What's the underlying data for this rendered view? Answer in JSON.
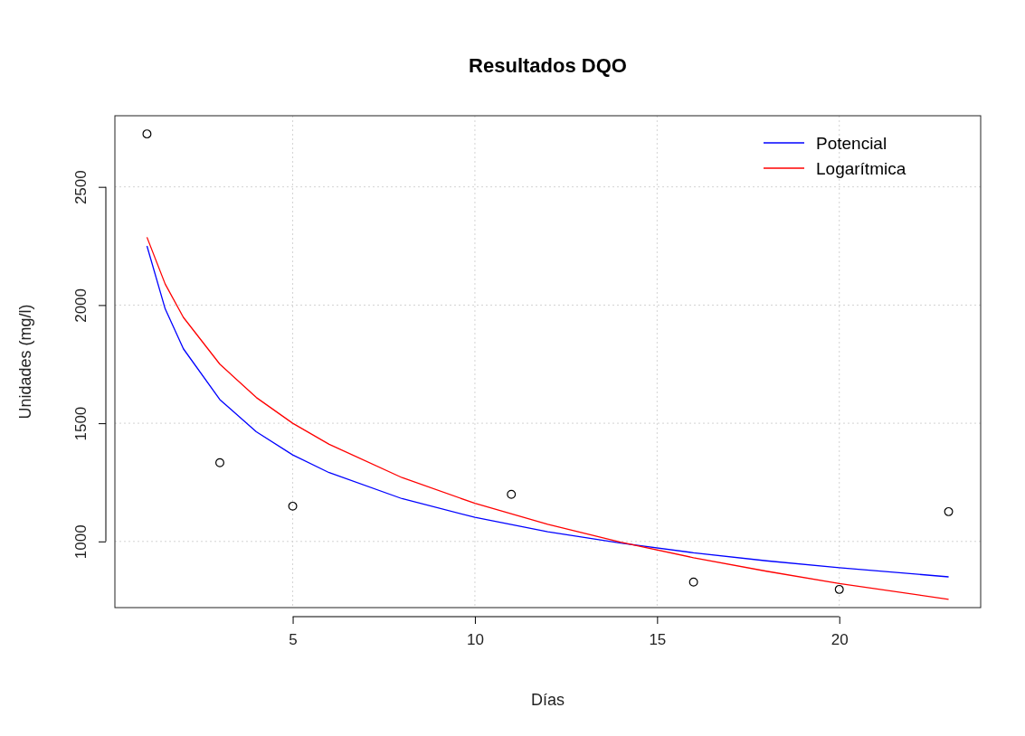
{
  "chart_data": {
    "type": "line",
    "title": "Resultados DQO",
    "xlabel": "Días",
    "ylabel": "Unidades (mg/l)",
    "xlim": [
      0.12,
      23.88
    ],
    "xticks": [
      5,
      10,
      15,
      20
    ],
    "ylim": [
      720,
      2801
    ],
    "yticks": [
      1000,
      1500,
      2000,
      2500
    ],
    "grid": true,
    "legend": "top right",
    "series": [
      {
        "type": "scatter",
        "color": "#000000",
        "marker": "circle",
        "x": [
          1,
          3,
          5,
          11,
          16,
          20,
          23
        ],
        "values": [
          2724,
          1333,
          1149,
          1199,
          828,
          797,
          1126
        ]
      },
      {
        "name": "Potencial",
        "color": "#0000ff",
        "marker": "none",
        "x": [
          1,
          1.5,
          2,
          3,
          4,
          5,
          6,
          8,
          10,
          12,
          14,
          16,
          18,
          20,
          23
        ],
        "values": [
          2250,
          1984,
          1815,
          1600,
          1464,
          1366,
          1291,
          1181,
          1102,
          1041,
          993,
          952,
          918,
          889,
          850
        ]
      },
      {
        "name": "Logarítmica",
        "color": "#ff0000",
        "marker": "none",
        "x": [
          1,
          1.5,
          2,
          3,
          4,
          5,
          6,
          8,
          10,
          12,
          14,
          16,
          18,
          20,
          23
        ],
        "values": [
          2287,
          2089,
          1948,
          1750,
          1609,
          1500,
          1411,
          1270,
          1161,
          1072,
          997,
          931,
          874,
          822,
          755
        ]
      }
    ]
  }
}
